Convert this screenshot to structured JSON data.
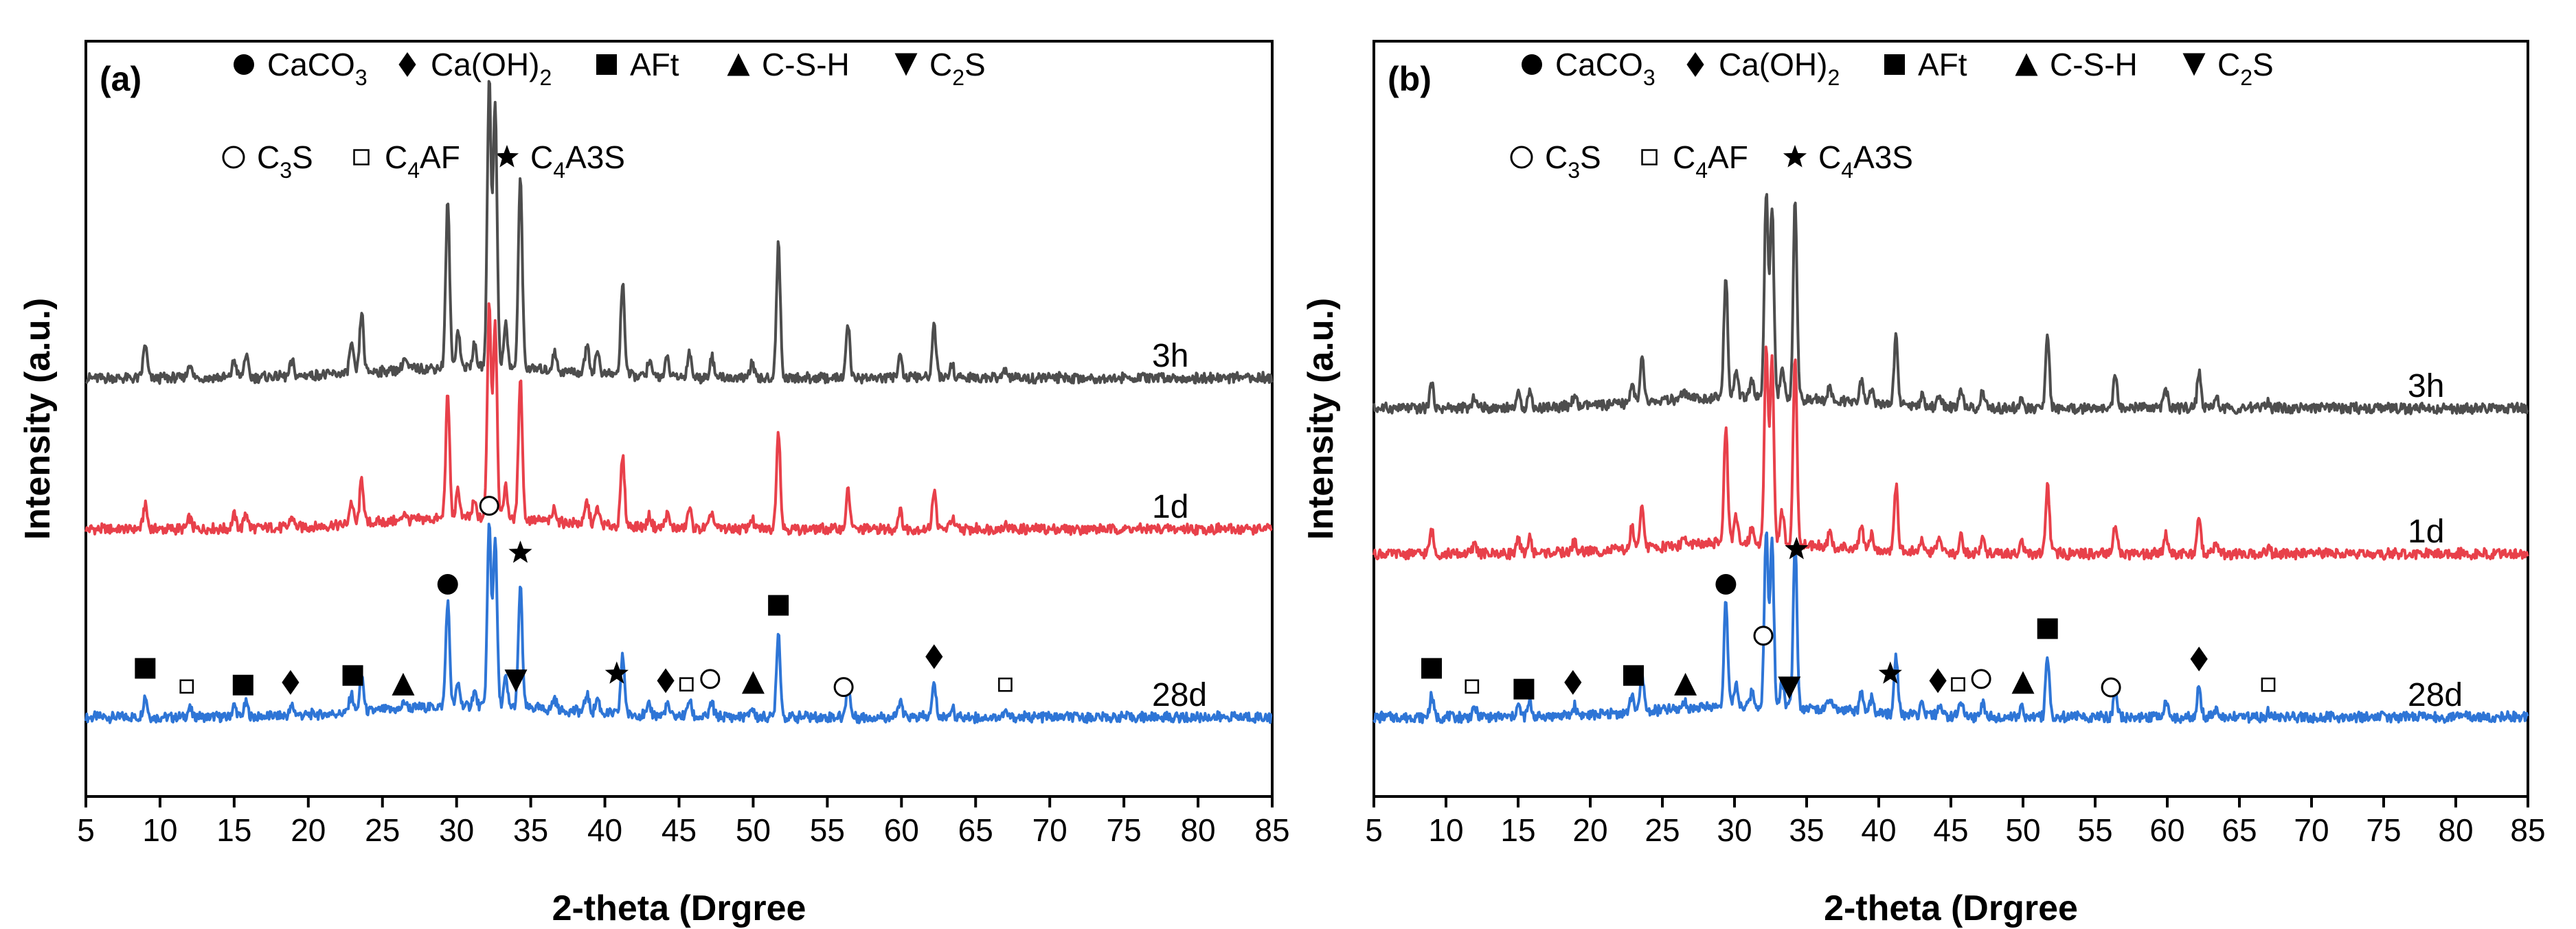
{
  "chart_data": [
    {
      "type": "line",
      "panel_label": "(a)",
      "title": "",
      "xlabel": "2-theta (Drgree",
      "ylabel": "Intensity (a.u.)",
      "xlim": [
        5,
        85
      ],
      "xticks": [
        "5",
        "10",
        "15",
        "20",
        "25",
        "30",
        "35",
        "40",
        "45",
        "50",
        "55",
        "60",
        "65",
        "70",
        "75",
        "80",
        "85"
      ],
      "yticks": [],
      "legend": [
        {
          "symbol": "filled-circle",
          "name": "CaCO",
          "sub": "3",
          "suffix": ""
        },
        {
          "symbol": "filled-diamond",
          "name": "Ca(OH)",
          "sub": "2",
          "suffix": ""
        },
        {
          "symbol": "filled-square",
          "name": "AFt",
          "sub": "",
          "suffix": ""
        },
        {
          "symbol": "filled-triangle-up",
          "name": "C-S-H",
          "sub": "",
          "suffix": ""
        },
        {
          "symbol": "filled-triangle-down",
          "name": "C",
          "sub": "2",
          "suffix": "S"
        },
        {
          "symbol": "open-circle",
          "name": "C",
          "sub": "3",
          "suffix": "S"
        },
        {
          "symbol": "open-square",
          "name": "C",
          "sub": "4",
          "suffix": "AF"
        },
        {
          "symbol": "star",
          "name": "C",
          "sub": "4",
          "suffix": "A3S"
        }
      ],
      "series": [
        {
          "name": "28d",
          "color": "#2e75d6",
          "offset": 2.4,
          "scale": 0.85
        },
        {
          "name": "1d",
          "color": "#e8404a",
          "offset": 1.2,
          "scale": 1.0
        },
        {
          "name": "3h",
          "color": "#4d4d4d",
          "offset": 0.0,
          "scale": 1.35
        }
      ],
      "peaks": [
        {
          "x": 9.0,
          "h": 0.09
        },
        {
          "x": 12.0,
          "h": 0.04
        },
        {
          "x": 15.0,
          "h": 0.05
        },
        {
          "x": 15.8,
          "h": 0.06
        },
        {
          "x": 18.9,
          "h": 0.04
        },
        {
          "x": 22.9,
          "h": 0.08
        },
        {
          "x": 23.6,
          "h": 0.16
        },
        {
          "x": 26.5,
          "h": 0.03
        },
        {
          "x": 29.4,
          "h": 0.45
        },
        {
          "x": 30.1,
          "h": 0.1
        },
        {
          "x": 31.2,
          "h": 0.06
        },
        {
          "x": 32.2,
          "h": 0.78
        },
        {
          "x": 32.6,
          "h": 0.72
        },
        {
          "x": 33.3,
          "h": 0.12
        },
        {
          "x": 34.3,
          "h": 0.52
        },
        {
          "x": 36.6,
          "h": 0.05
        },
        {
          "x": 38.8,
          "h": 0.08
        },
        {
          "x": 39.5,
          "h": 0.06
        },
        {
          "x": 41.2,
          "h": 0.25
        },
        {
          "x": 43.0,
          "h": 0.04
        },
        {
          "x": 44.2,
          "h": 0.05
        },
        {
          "x": 45.7,
          "h": 0.07
        },
        {
          "x": 47.2,
          "h": 0.06
        },
        {
          "x": 49.9,
          "h": 0.04
        },
        {
          "x": 51.7,
          "h": 0.36
        },
        {
          "x": 56.4,
          "h": 0.14
        },
        {
          "x": 59.9,
          "h": 0.07
        },
        {
          "x": 62.2,
          "h": 0.14
        },
        {
          "x": 63.4,
          "h": 0.04
        },
        {
          "x": 67.0,
          "h": 0.02
        }
      ],
      "markers": [
        {
          "x": 9.0,
          "symbol": "filled-square"
        },
        {
          "x": 11.8,
          "symbol": "open-square"
        },
        {
          "x": 15.6,
          "symbol": "filled-square"
        },
        {
          "x": 18.8,
          "symbol": "filled-diamond"
        },
        {
          "x": 23.0,
          "symbol": "filled-square"
        },
        {
          "x": 26.4,
          "symbol": "filled-triangle-up"
        },
        {
          "x": 29.4,
          "symbol": "filled-circle"
        },
        {
          "x": 32.2,
          "symbol": "open-circle"
        },
        {
          "x": 34.0,
          "symbol": "filled-triangle-down"
        },
        {
          "x": 34.3,
          "symbol": "star"
        },
        {
          "x": 40.8,
          "symbol": "star"
        },
        {
          "x": 44.1,
          "symbol": "filled-diamond"
        },
        {
          "x": 45.5,
          "symbol": "open-square"
        },
        {
          "x": 47.1,
          "symbol": "open-circle"
        },
        {
          "x": 50.0,
          "symbol": "filled-triangle-up"
        },
        {
          "x": 51.7,
          "symbol": "filled-square"
        },
        {
          "x": 56.1,
          "symbol": "open-circle"
        },
        {
          "x": 62.2,
          "symbol": "filled-diamond"
        },
        {
          "x": 67.0,
          "symbol": "open-square"
        }
      ]
    },
    {
      "type": "line",
      "panel_label": "(b)",
      "title": "",
      "xlabel": "2-theta (Drgree",
      "ylabel": "Intensity (a.u.)",
      "xlim": [
        5,
        85
      ],
      "xticks": [
        "5",
        "10",
        "15",
        "20",
        "25",
        "30",
        "35",
        "40",
        "45",
        "50",
        "55",
        "60",
        "65",
        "70",
        "75",
        "80",
        "85"
      ],
      "yticks": [],
      "legend": [
        {
          "symbol": "filled-circle",
          "name": "CaCO",
          "sub": "3",
          "suffix": ""
        },
        {
          "symbol": "filled-diamond",
          "name": "Ca(OH)",
          "sub": "2",
          "suffix": ""
        },
        {
          "symbol": "filled-square",
          "name": "AFt",
          "sub": "",
          "suffix": ""
        },
        {
          "symbol": "filled-triangle-up",
          "name": "C-S-H",
          "sub": "",
          "suffix": ""
        },
        {
          "symbol": "filled-triangle-down",
          "name": "C",
          "sub": "2",
          "suffix": "S"
        },
        {
          "symbol": "open-circle",
          "name": "C",
          "sub": "3",
          "suffix": "S"
        },
        {
          "symbol": "open-square",
          "name": "C",
          "sub": "4",
          "suffix": "AF"
        },
        {
          "symbol": "star",
          "name": "C",
          "sub": "4",
          "suffix": "A3S"
        }
      ],
      "series": [
        {
          "name": "28d",
          "color": "#2e75d6",
          "offset": 2.2,
          "scale": 0.85
        },
        {
          "name": "1d",
          "color": "#e8404a",
          "offset": 1.1,
          "scale": 0.95
        },
        {
          "name": "3h",
          "color": "#4d4d4d",
          "offset": 0.0,
          "scale": 1.0
        }
      ],
      "peaks": [
        {
          "x": 9.0,
          "h": 0.09
        },
        {
          "x": 12.0,
          "h": 0.04
        },
        {
          "x": 15.0,
          "h": 0.05
        },
        {
          "x": 15.8,
          "h": 0.06
        },
        {
          "x": 18.9,
          "h": 0.04
        },
        {
          "x": 22.9,
          "h": 0.08
        },
        {
          "x": 23.6,
          "h": 0.16
        },
        {
          "x": 26.5,
          "h": 0.03
        },
        {
          "x": 29.4,
          "h": 0.45
        },
        {
          "x": 30.1,
          "h": 0.1
        },
        {
          "x": 31.2,
          "h": 0.06
        },
        {
          "x": 32.2,
          "h": 0.75
        },
        {
          "x": 32.6,
          "h": 0.7
        },
        {
          "x": 33.3,
          "h": 0.12
        },
        {
          "x": 34.2,
          "h": 0.72
        },
        {
          "x": 36.6,
          "h": 0.05
        },
        {
          "x": 38.8,
          "h": 0.08
        },
        {
          "x": 39.5,
          "h": 0.06
        },
        {
          "x": 41.2,
          "h": 0.25
        },
        {
          "x": 43.0,
          "h": 0.04
        },
        {
          "x": 44.2,
          "h": 0.05
        },
        {
          "x": 45.7,
          "h": 0.07
        },
        {
          "x": 47.2,
          "h": 0.06
        },
        {
          "x": 49.9,
          "h": 0.04
        },
        {
          "x": 51.7,
          "h": 0.26
        },
        {
          "x": 56.4,
          "h": 0.12
        },
        {
          "x": 59.9,
          "h": 0.07
        },
        {
          "x": 62.2,
          "h": 0.13
        },
        {
          "x": 63.4,
          "h": 0.04
        },
        {
          "x": 67.0,
          "h": 0.02
        }
      ],
      "markers": [
        {
          "x": 9.0,
          "symbol": "filled-square"
        },
        {
          "x": 11.8,
          "symbol": "open-square"
        },
        {
          "x": 15.4,
          "symbol": "filled-square"
        },
        {
          "x": 18.8,
          "symbol": "filled-diamond"
        },
        {
          "x": 23.0,
          "symbol": "filled-square"
        },
        {
          "x": 26.6,
          "symbol": "filled-triangle-up"
        },
        {
          "x": 29.4,
          "symbol": "filled-circle"
        },
        {
          "x": 32.0,
          "symbol": "open-circle"
        },
        {
          "x": 33.8,
          "symbol": "filled-triangle-down"
        },
        {
          "x": 34.3,
          "symbol": "star"
        },
        {
          "x": 40.8,
          "symbol": "star"
        },
        {
          "x": 44.1,
          "symbol": "filled-diamond"
        },
        {
          "x": 45.5,
          "symbol": "open-square"
        },
        {
          "x": 47.1,
          "symbol": "open-circle"
        },
        {
          "x": 50.0,
          "symbol": "filled-triangle-up"
        },
        {
          "x": 51.7,
          "symbol": "filled-square"
        },
        {
          "x": 56.1,
          "symbol": "open-circle"
        },
        {
          "x": 62.2,
          "symbol": "filled-diamond"
        },
        {
          "x": 67.0,
          "symbol": "open-square"
        }
      ]
    }
  ]
}
